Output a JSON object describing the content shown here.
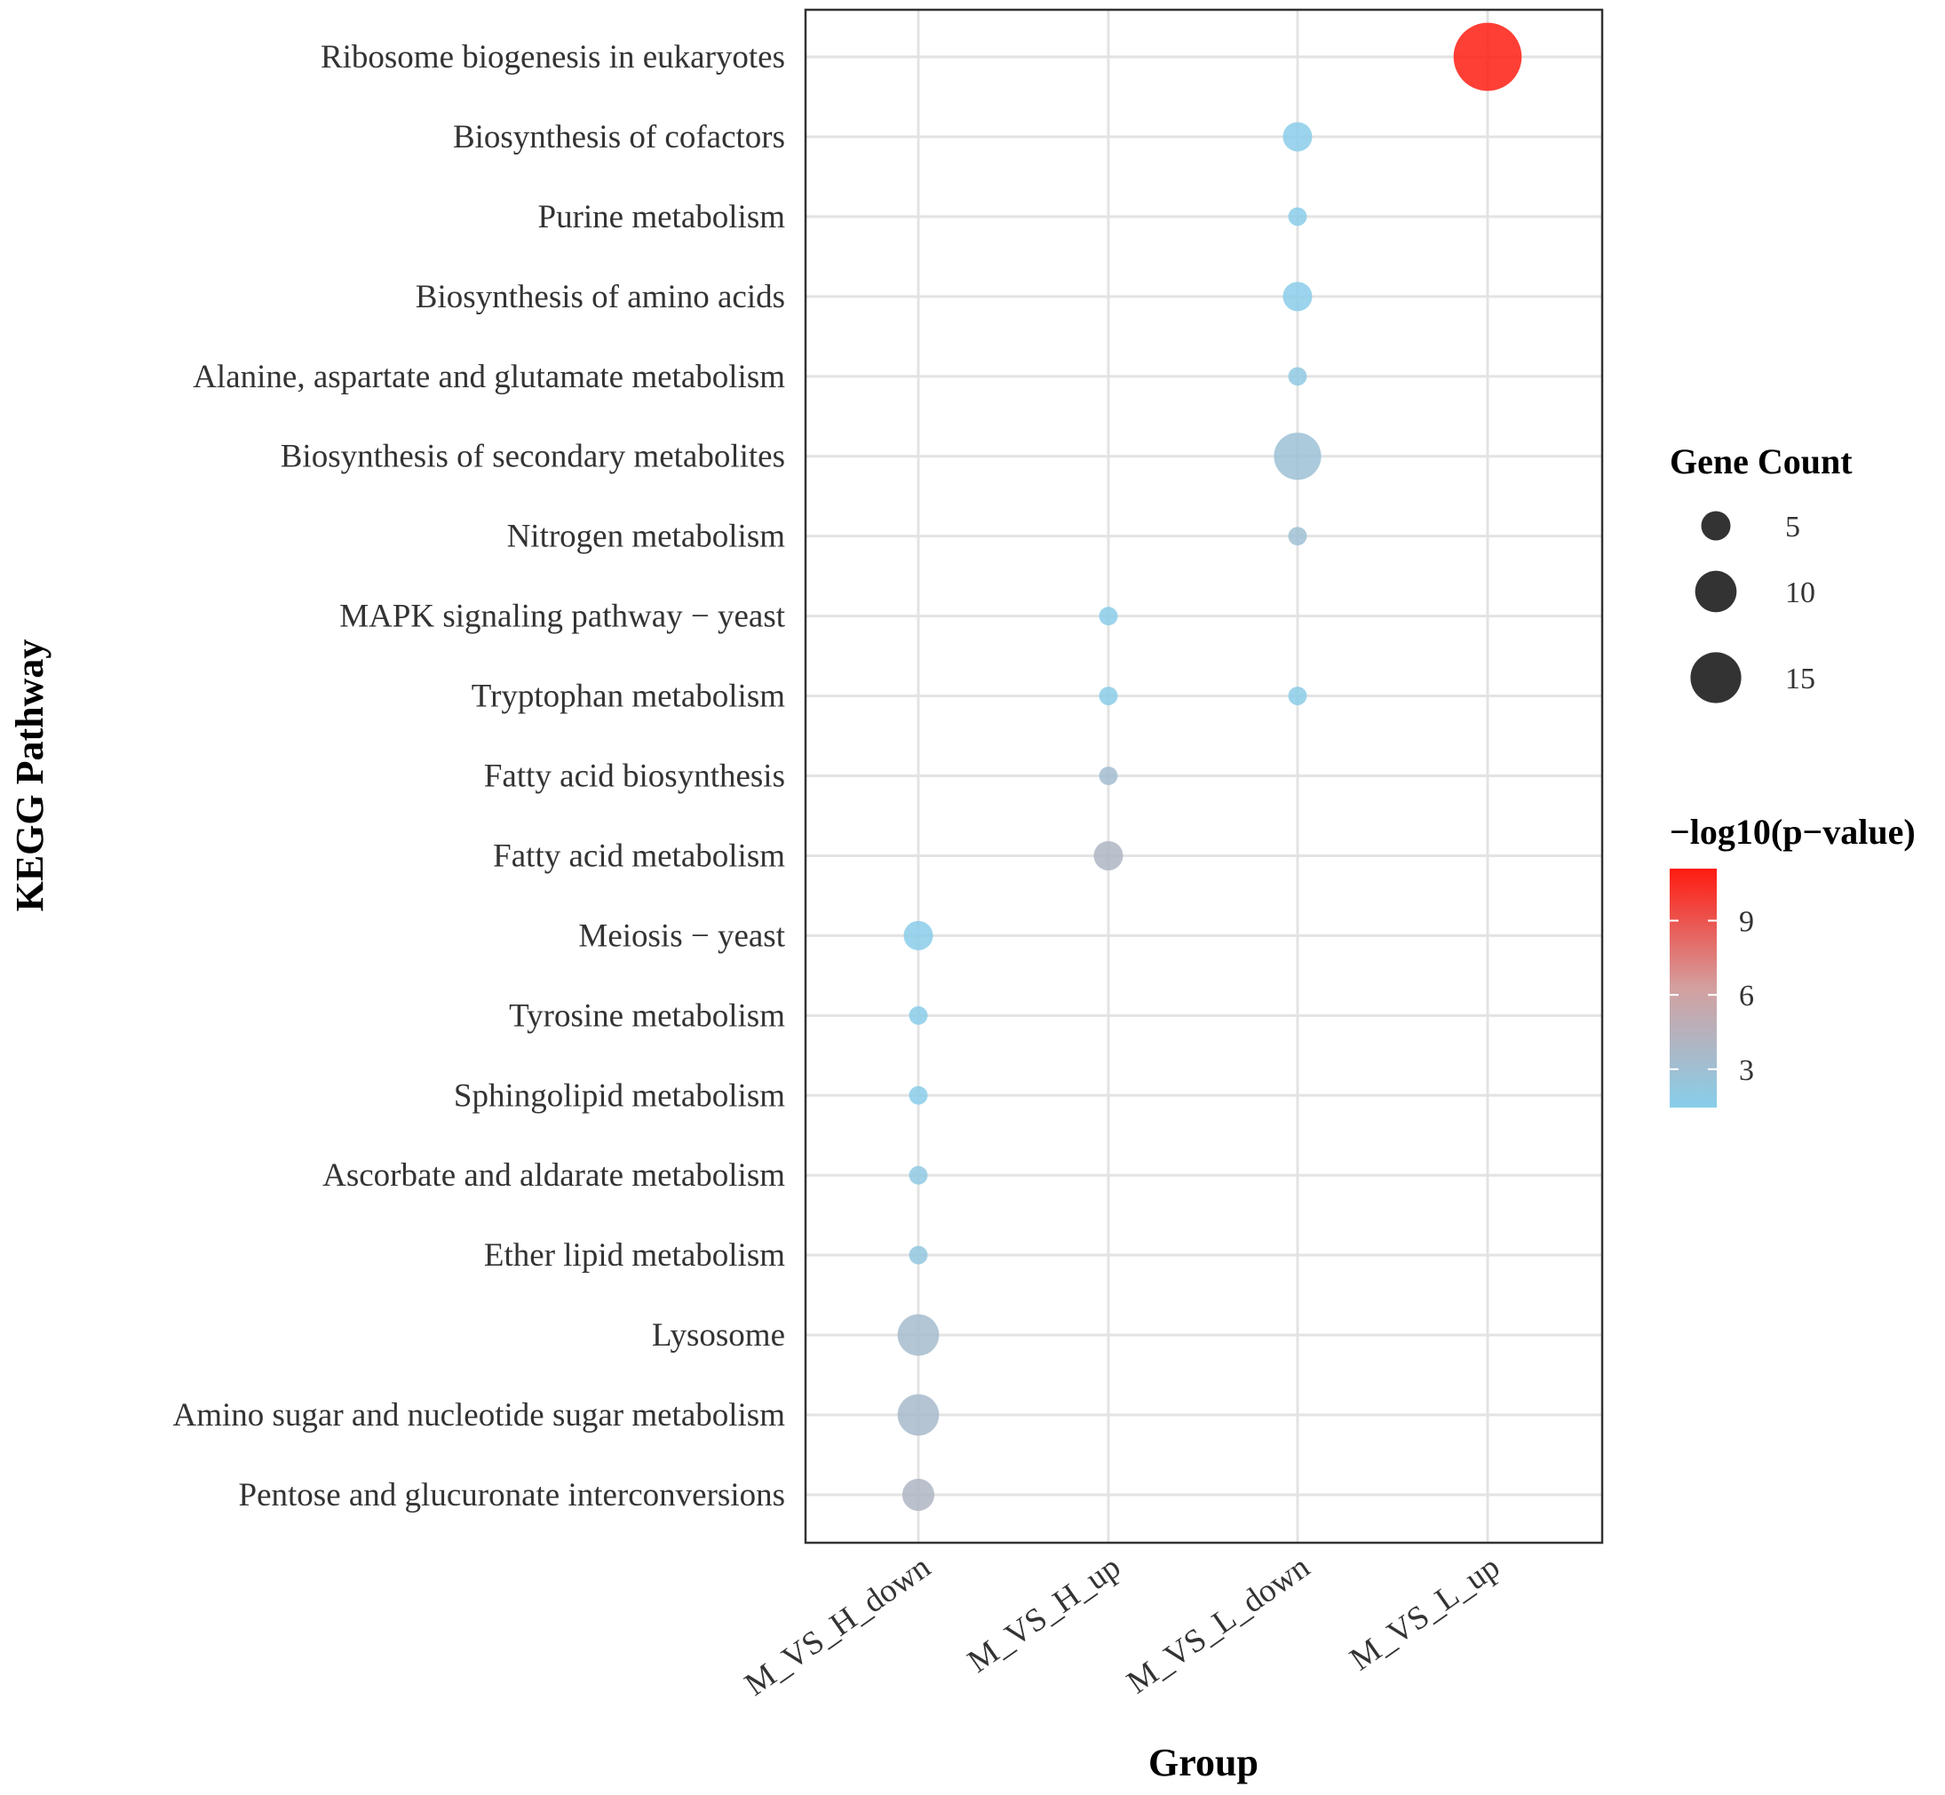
{
  "chart_data": {
    "type": "scatter",
    "subtype": "bubble",
    "title": "",
    "xlabel": "Group",
    "ylabel": "KEGG Pathway",
    "categories_x": [
      "M_VS_H_down",
      "M_VS_H_up",
      "M_VS_L_down",
      "M_VS_L_up"
    ],
    "categories_y": [
      "Ribosome biogenesis in eukaryotes",
      "Biosynthesis of cofactors",
      "Purine metabolism",
      "Biosynthesis of amino acids",
      "Alanine, aspartate and glutamate metabolism",
      "Biosynthesis of secondary metabolites",
      "Nitrogen metabolism",
      "MAPK signaling pathway − yeast",
      "Tryptophan metabolism",
      "Fatty acid biosynthesis",
      "Fatty acid metabolism",
      "Meiosis − yeast",
      "Tyrosine metabolism",
      "Sphingolipid metabolism",
      "Ascorbate and aldarate metabolism",
      "Ether lipid metabolism",
      "Lysosome",
      "Amino sugar and nucleotide sugar metabolism",
      "Pentose and glucuronate interconversions"
    ],
    "points": [
      {
        "group": "M_VS_L_up",
        "pathway": "Ribosome biogenesis in eukaryotes",
        "count": 27,
        "neglog10p": 11.0
      },
      {
        "group": "M_VS_L_down",
        "pathway": "Biosynthesis of cofactors",
        "count": 5,
        "neglog10p": 1.6
      },
      {
        "group": "M_VS_L_down",
        "pathway": "Purine metabolism",
        "count": 2,
        "neglog10p": 1.6
      },
      {
        "group": "M_VS_L_down",
        "pathway": "Biosynthesis of amino acids",
        "count": 5,
        "neglog10p": 1.6
      },
      {
        "group": "M_VS_L_down",
        "pathway": "Alanine, aspartate and glutamate metabolism",
        "count": 2,
        "neglog10p": 2.0
      },
      {
        "group": "M_VS_L_down",
        "pathway": "Biosynthesis of secondary metabolites",
        "count": 13,
        "neglog10p": 2.8
      },
      {
        "group": "M_VS_L_down",
        "pathway": "Nitrogen metabolism",
        "count": 2,
        "neglog10p": 3.0
      },
      {
        "group": "M_VS_H_up",
        "pathway": "MAPK signaling pathway − yeast",
        "count": 2,
        "neglog10p": 1.6
      },
      {
        "group": "M_VS_H_up",
        "pathway": "Tryptophan metabolism",
        "count": 2,
        "neglog10p": 1.7
      },
      {
        "group": "M_VS_L_down",
        "pathway": "Tryptophan metabolism",
        "count": 2,
        "neglog10p": 1.7
      },
      {
        "group": "M_VS_H_up",
        "pathway": "Fatty acid biosynthesis",
        "count": 2,
        "neglog10p": 3.2
      },
      {
        "group": "M_VS_H_up",
        "pathway": "Fatty acid metabolism",
        "count": 5,
        "neglog10p": 4.0
      },
      {
        "group": "M_VS_H_down",
        "pathway": "Meiosis − yeast",
        "count": 5,
        "neglog10p": 1.6
      },
      {
        "group": "M_VS_H_down",
        "pathway": "Tyrosine metabolism",
        "count": 2,
        "neglog10p": 1.6
      },
      {
        "group": "M_VS_H_down",
        "pathway": "Sphingolipid metabolism",
        "count": 2,
        "neglog10p": 1.6
      },
      {
        "group": "M_VS_H_down",
        "pathway": "Ascorbate and aldarate metabolism",
        "count": 2,
        "neglog10p": 2.0
      },
      {
        "group": "M_VS_H_down",
        "pathway": "Ether lipid metabolism",
        "count": 2,
        "neglog10p": 2.2
      },
      {
        "group": "M_VS_H_down",
        "pathway": "Lysosome",
        "count": 10,
        "neglog10p": 3.3
      },
      {
        "group": "M_VS_H_down",
        "pathway": "Amino sugar and nucleotide sugar metabolism",
        "count": 10,
        "neglog10p": 3.5
      },
      {
        "group": "M_VS_H_down",
        "pathway": "Pentose and glucuronate interconversions",
        "count": 6,
        "neglog10p": 4.0
      }
    ],
    "size_legend": {
      "title": "Gene Count",
      "values": [
        5,
        10,
        15
      ],
      "labels": [
        "5",
        "10",
        "15"
      ]
    },
    "color_legend": {
      "title": "−log10(p−value)",
      "ticks": [
        3,
        6,
        9
      ],
      "labels": [
        "3",
        "6",
        "9"
      ],
      "range": [
        1.45,
        11.1
      ],
      "low_color": "#87ceeb",
      "high_color": "#ff0000"
    },
    "grid": true,
    "legend_placement": "right"
  }
}
